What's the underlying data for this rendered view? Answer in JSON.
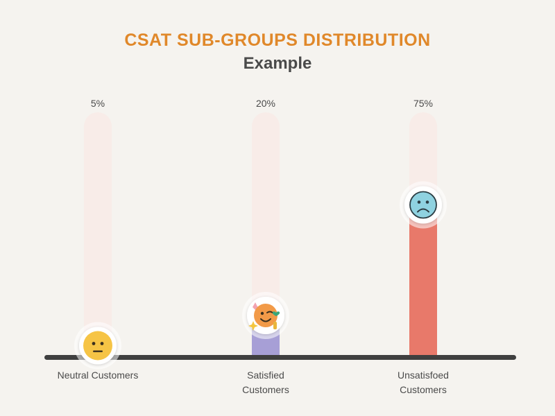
{
  "colors": {
    "background": "#f5f3ef",
    "title": "#e0882a",
    "subtitle": "#4a4a4a",
    "track": "#f8ece8",
    "baseline": "#3f3f3f",
    "label": "#4a4a4a"
  },
  "chart_data": {
    "type": "bar",
    "title": "CSAT SUB-GROUPS DISTRIBUTION",
    "subtitle": "Example",
    "xlabel": "",
    "ylabel": "",
    "ylim": [
      0,
      100
    ],
    "grid": false,
    "legend": "none",
    "categories": [
      "Neutral Customers",
      "Satisfied Customers",
      "Unsatisfoed Customers"
    ],
    "category_lines": [
      [
        "Neutral Customers"
      ],
      [
        "Satisfied",
        "Customers"
      ],
      [
        "Unsatisfoed",
        "Customers"
      ]
    ],
    "values": [
      5,
      20,
      75
    ],
    "value_labels": [
      "5%",
      "20%",
      "75%"
    ],
    "bar_colors": [
      "#6aa88e",
      "#a79fd6",
      "#e8796a"
    ],
    "icons": [
      "neutral-face-icon",
      "winking-face-icon",
      "frowning-face-icon"
    ]
  }
}
